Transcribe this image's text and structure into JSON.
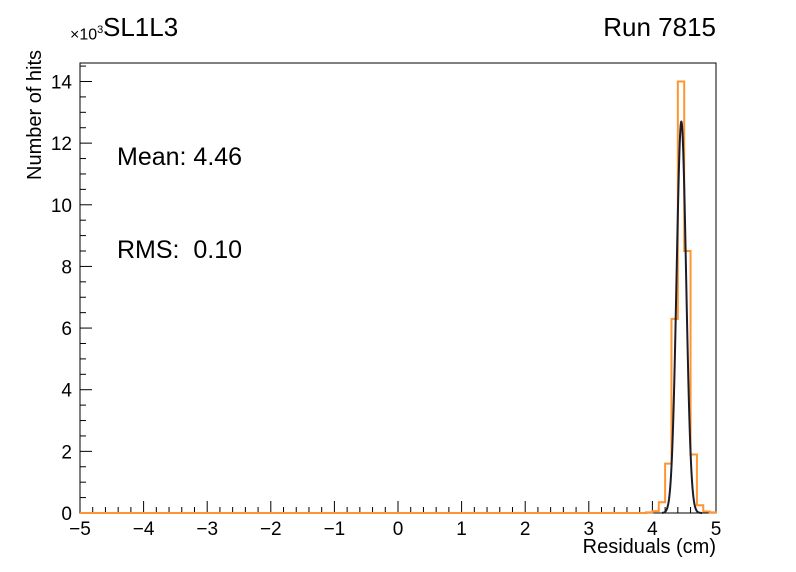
{
  "header": {
    "multiplier_base": "×10",
    "multiplier_exp": "3",
    "title": "SL1L3",
    "run_label": "Run 7815"
  },
  "stats": {
    "mean": "Mean: 4.46",
    "rms": "RMS:  0.10"
  },
  "axes": {
    "xlabel": "Residuals (cm)",
    "ylabel": "Number of hits"
  },
  "chart_data": {
    "type": "bar",
    "title": "SL1L3",
    "subtitle": "Run 7815",
    "xlabel": "Residuals (cm)",
    "ylabel": "Number of hits",
    "y_unit": "×10³ hits",
    "xlim": [
      -5,
      5
    ],
    "ylim": [
      0,
      14.6
    ],
    "grid": false,
    "legend": "none",
    "annotations": [
      "Mean: 4.46",
      "RMS:  0.10"
    ],
    "x_minor_step": 0.2,
    "y_minor_step": 0.5,
    "x_ticks": [
      {
        "v": -5,
        "label": "−5"
      },
      {
        "v": -4,
        "label": "−4"
      },
      {
        "v": -3,
        "label": "−3"
      },
      {
        "v": -2,
        "label": "−2"
      },
      {
        "v": -1,
        "label": "−1"
      },
      {
        "v": 0,
        "label": "0"
      },
      {
        "v": 1,
        "label": "1"
      },
      {
        "v": 2,
        "label": "2"
      },
      {
        "v": 3,
        "label": "3"
      },
      {
        "v": 4,
        "label": "4"
      },
      {
        "v": 5,
        "label": "5"
      }
    ],
    "y_ticks": [
      {
        "v": 0,
        "label": "0"
      },
      {
        "v": 2,
        "label": "2"
      },
      {
        "v": 4,
        "label": "4"
      },
      {
        "v": 6,
        "label": "6"
      },
      {
        "v": 8,
        "label": "8"
      },
      {
        "v": 10,
        "label": "10"
      },
      {
        "v": 12,
        "label": "12"
      },
      {
        "v": 14,
        "label": "14"
      }
    ],
    "series": [
      {
        "name": "residuals-histogram",
        "type": "step-histogram",
        "color": "#ff9530",
        "line_width": 2,
        "bin_start": 3.9,
        "bin_width": 0.1,
        "values": [
          0.02,
          0.06,
          0.35,
          1.6,
          6.3,
          14.0,
          8.5,
          1.9,
          0.25,
          0.05,
          0.02
        ]
      },
      {
        "name": "gaussian-fit",
        "type": "gaussian",
        "color": "#1c1c28",
        "line_width": 2,
        "amplitude": 12.7,
        "mean": 4.455,
        "sigma": 0.075,
        "draw_range": [
          4.15,
          4.78
        ]
      }
    ]
  }
}
